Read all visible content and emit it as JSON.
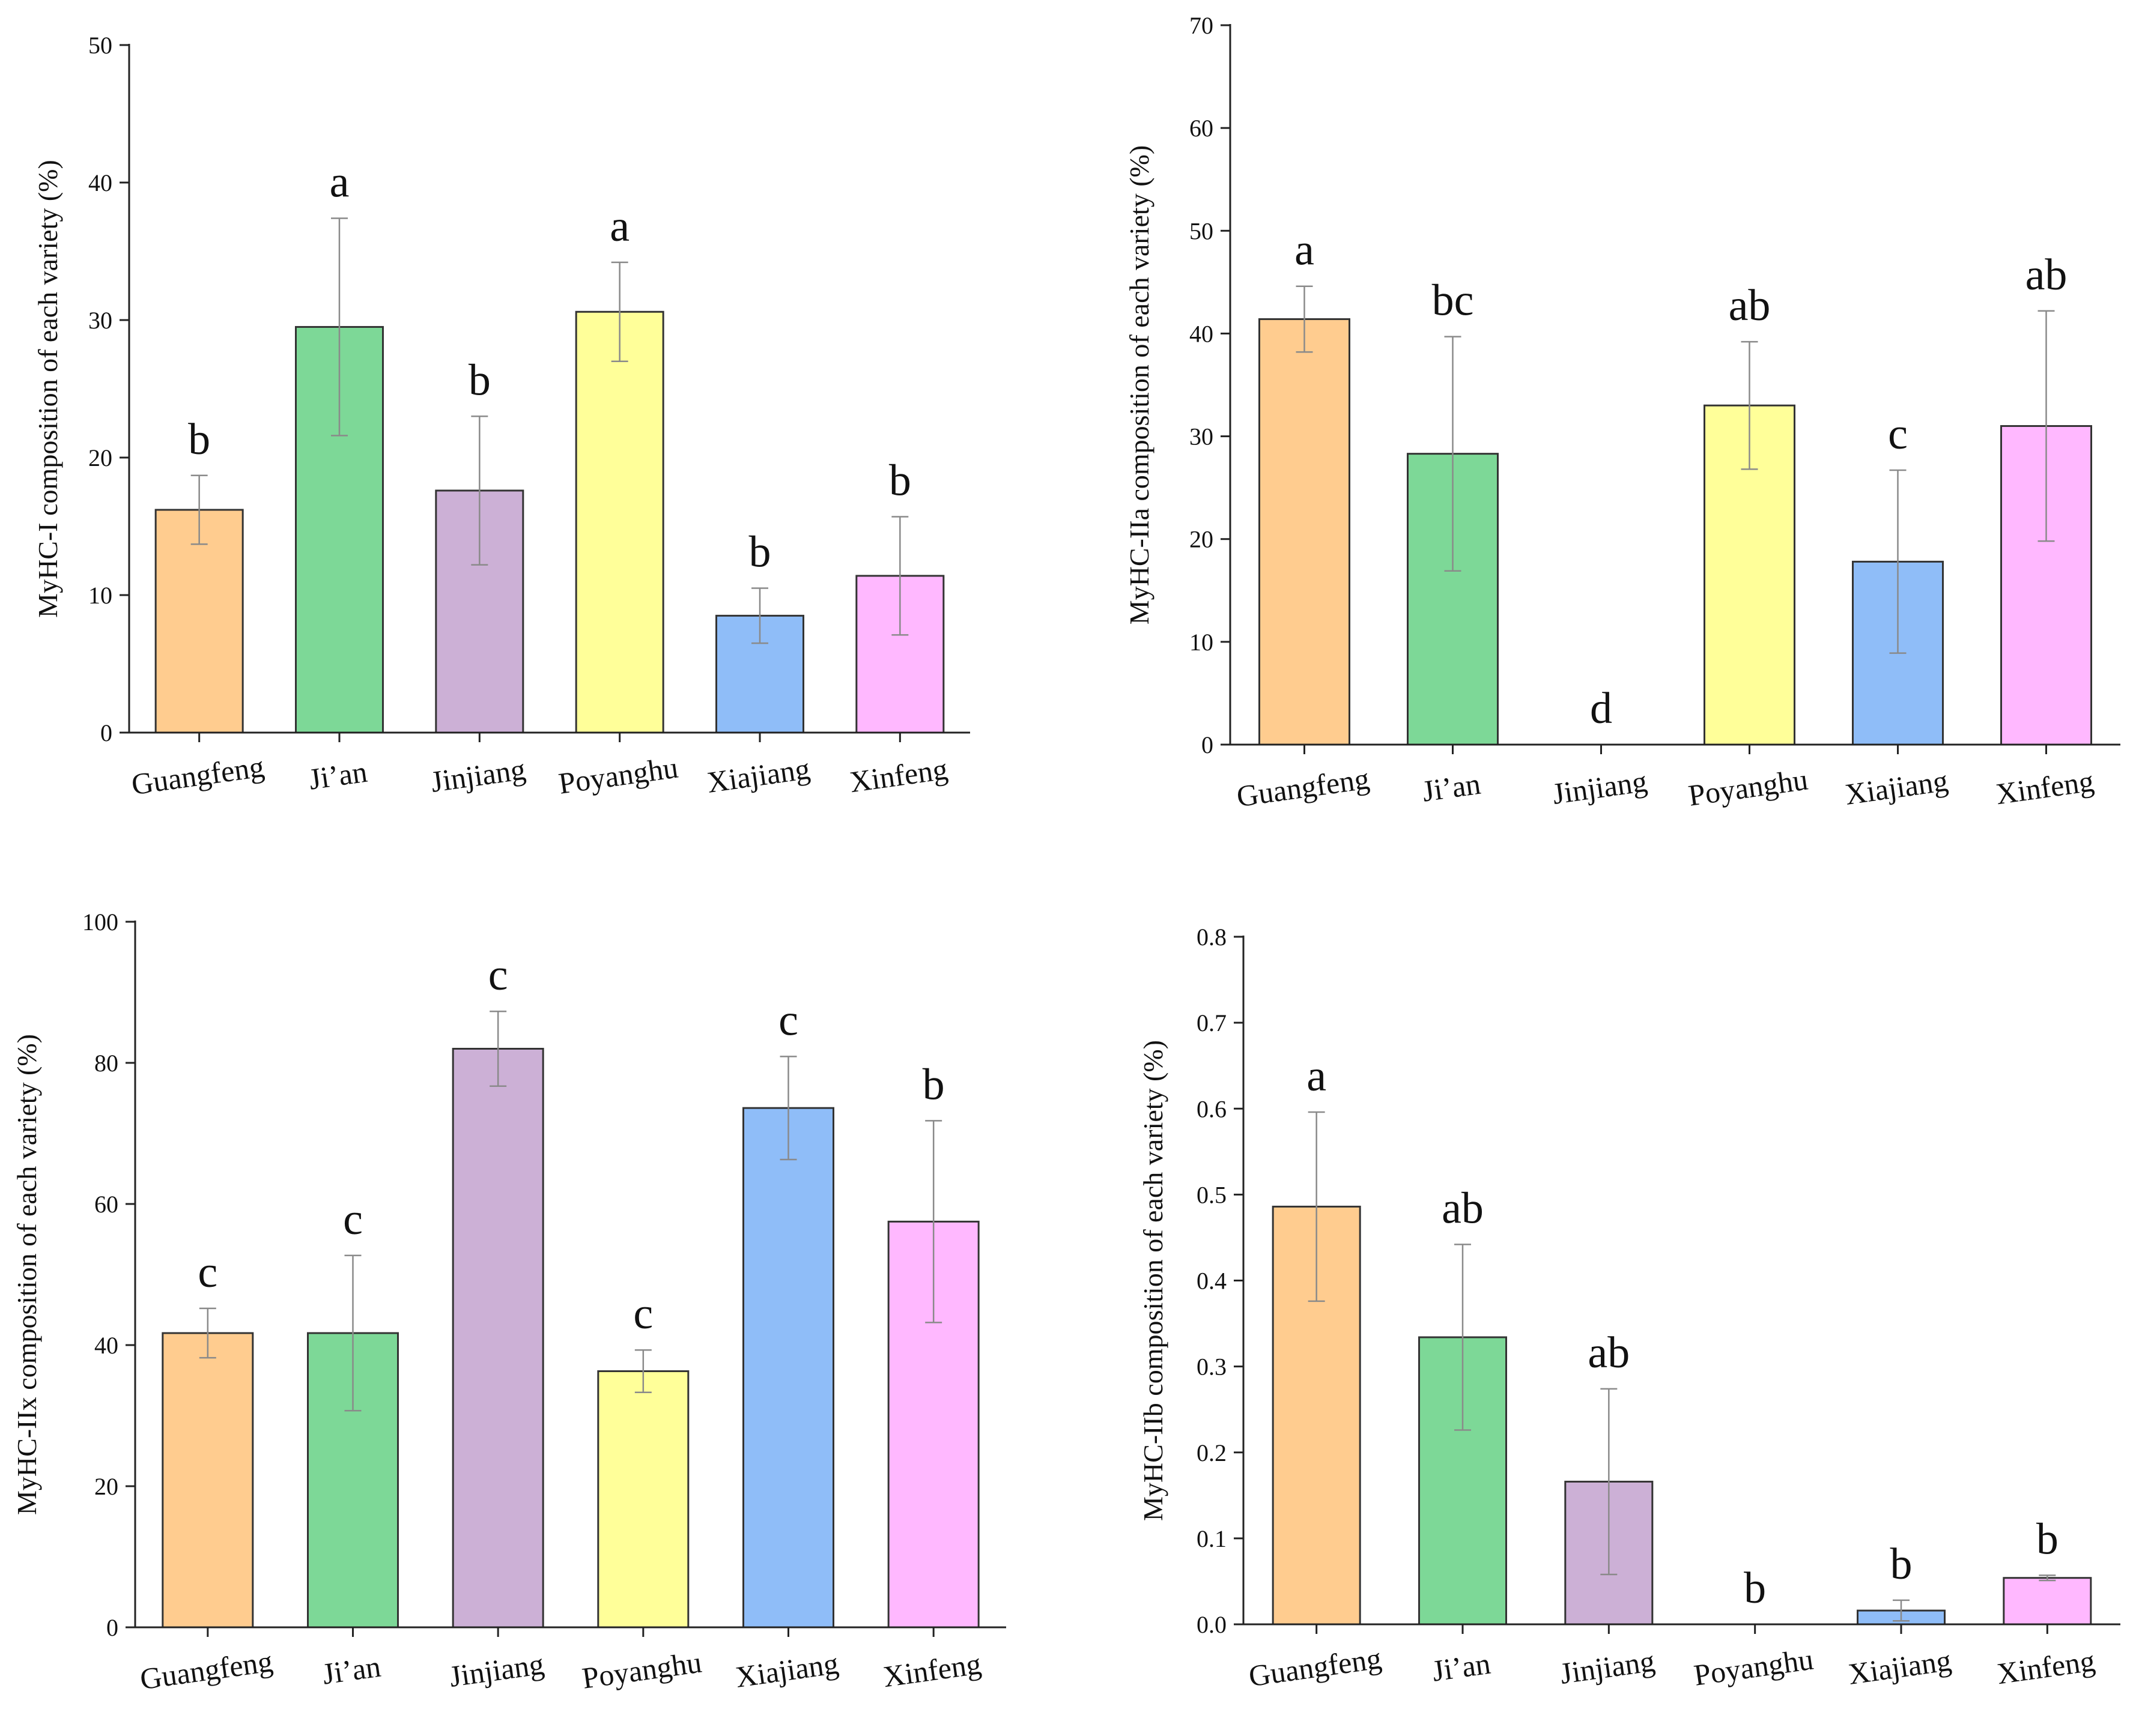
{
  "colors": {
    "Guangfeng": "#FFCC8F",
    "Ji’an": "#7DD897",
    "Jinjiang": "#CCB0D6",
    "Poyanghu": "#FFFF99",
    "Xiajiang": "#8FBDF8",
    "Xinfeng": "#FFB8FF"
  },
  "chart_data": [
    {
      "type": "bar",
      "categories": [
        "Guangfeng",
        "Ji’an",
        "Jinjiang",
        "Poyanghu",
        "Xiajiang",
        "Xinfeng"
      ],
      "values": [
        16.2,
        29.5,
        17.6,
        30.6,
        8.5,
        11.4
      ],
      "errors": [
        2.5,
        7.9,
        5.4,
        3.6,
        2.0,
        4.3
      ],
      "labels": [
        "b",
        "a",
        "b",
        "a",
        "b",
        "b"
      ],
      "ylabel": "MyHC-I composition of each variety (%)",
      "ylim": [
        0,
        50
      ],
      "yticks": [
        0,
        10,
        20,
        30,
        40,
        50
      ],
      "ytick_labels": [
        "0",
        "10",
        "20",
        "30",
        "40",
        "50"
      ]
    },
    {
      "type": "bar",
      "categories": [
        "Guangfeng",
        "Ji’an",
        "Jinjiang",
        "Poyanghu",
        "Xiajiang",
        "Xinfeng"
      ],
      "values": [
        41.4,
        28.3,
        0,
        33.0,
        17.8,
        31.0
      ],
      "errors": [
        3.2,
        11.4,
        0,
        6.2,
        8.9,
        11.2
      ],
      "labels": [
        "a",
        "bc",
        "d",
        "ab",
        "c",
        "ab"
      ],
      "ylabel": "MyHC-IIa composition of each variety (%)",
      "ylim": [
        0,
        70
      ],
      "yticks": [
        0,
        10,
        20,
        30,
        40,
        50,
        60,
        70
      ],
      "ytick_labels": [
        "0",
        "10",
        "20",
        "30",
        "40",
        "50",
        "60",
        "70"
      ]
    },
    {
      "type": "bar",
      "categories": [
        "Guangfeng",
        "Ji’an",
        "Jinjiang",
        "Poyanghu",
        "Xiajiang",
        "Xinfeng"
      ],
      "values": [
        41.7,
        41.7,
        82.0,
        36.3,
        73.6,
        57.5
      ],
      "errors": [
        3.5,
        11.0,
        5.3,
        3.0,
        7.3,
        14.3
      ],
      "labels": [
        "c",
        "c",
        "c",
        "c",
        "c",
        "b"
      ],
      "ylabel": "MyHC-IIx composition of each variety (%)",
      "ylim": [
        0,
        100
      ],
      "yticks": [
        0,
        20,
        40,
        60,
        80,
        100
      ],
      "ytick_labels": [
        "0",
        "20",
        "40",
        "60",
        "80",
        "100"
      ]
    },
    {
      "type": "bar",
      "categories": [
        "Guangfeng",
        "Ji’an",
        "Jinjiang",
        "Poyanghu",
        "Xiajiang",
        "Xinfeng"
      ],
      "values": [
        0.486,
        0.334,
        0.166,
        0,
        0.016,
        0.054
      ],
      "errors": [
        0.11,
        0.108,
        0.108,
        0,
        0.012,
        0.003
      ],
      "labels": [
        "a",
        "ab",
        "ab",
        "b",
        "b",
        "b"
      ],
      "ylabel": "MyHC-IIb composition of each variety (%)",
      "ylim": [
        0,
        0.8
      ],
      "yticks": [
        0,
        0.1,
        0.2,
        0.3,
        0.4,
        0.5,
        0.6,
        0.7,
        0.8
      ],
      "ytick_labels": [
        "0.0",
        "0.1",
        "0.2",
        "0.3",
        "0.4",
        "0.5",
        "0.6",
        "0.7",
        "0.8"
      ]
    }
  ]
}
